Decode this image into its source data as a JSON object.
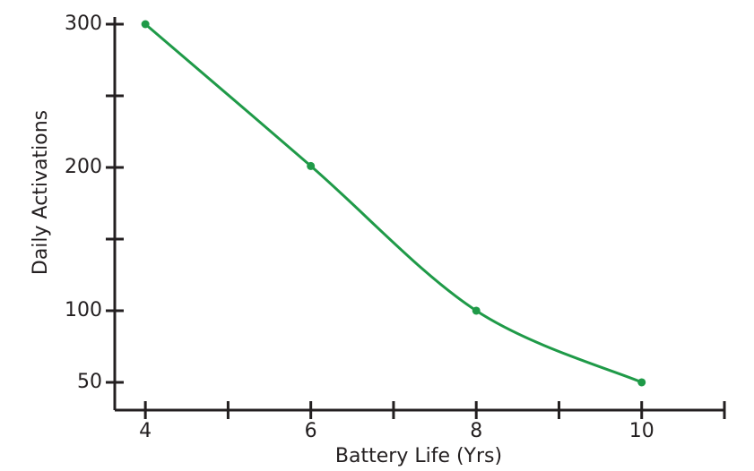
{
  "chart_data": {
    "type": "line",
    "x_label": "Battery Life (Yrs)",
    "y_label": "Daily Activations",
    "x": [
      4,
      6,
      8,
      10
    ],
    "series": [
      {
        "color": "#1f9a48",
        "values": [
          300,
          201,
          100,
          50
        ]
      }
    ],
    "xlim": [
      3.63,
      11
    ],
    "xticks": [
      4,
      6,
      8,
      10
    ],
    "minor_xticks": [
      5,
      7,
      9,
      11
    ],
    "ylim": [
      30.6,
      300
    ],
    "yticks": [
      50,
      100,
      200,
      300
    ],
    "minor_yticks": [
      150,
      250
    ],
    "grid": false,
    "smooth": true
  }
}
